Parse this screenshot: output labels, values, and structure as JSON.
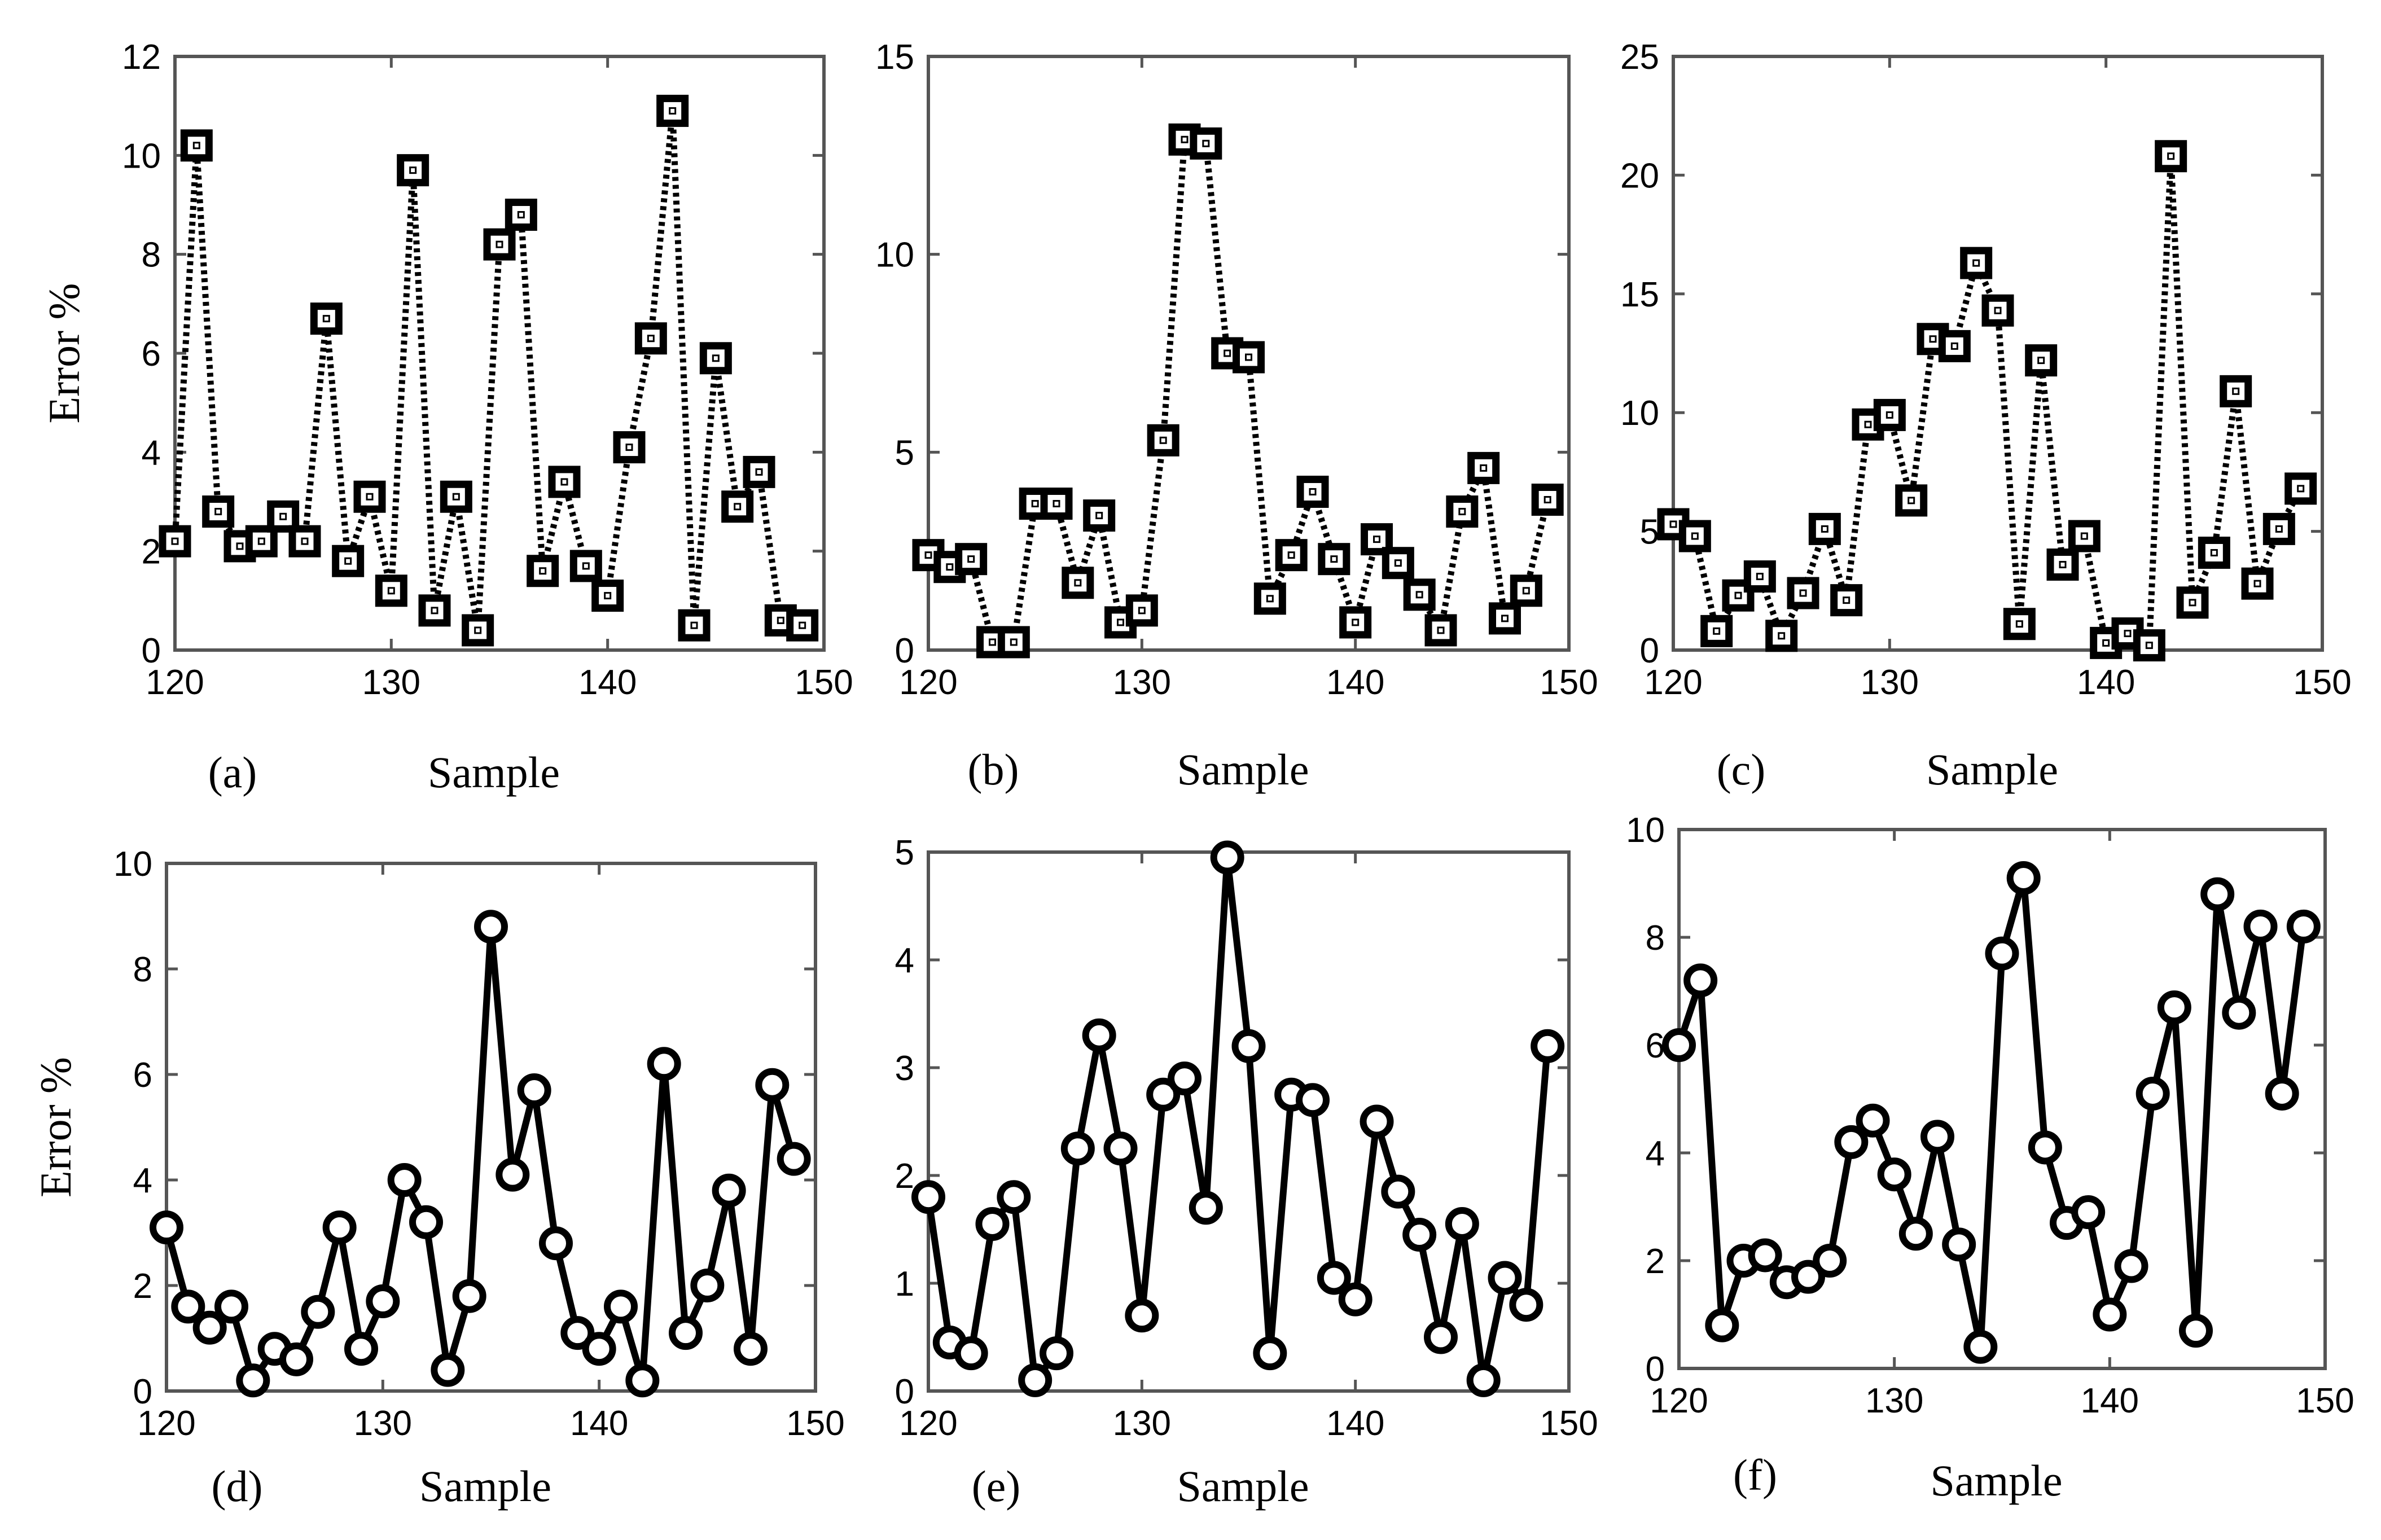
{
  "colors": {
    "line": "#000000",
    "frame": "#555555",
    "background": "#ffffff"
  },
  "chart_data": [
    {
      "id": "a",
      "panel_label": "(a)",
      "type": "line",
      "line_style": "dotted",
      "marker": "square",
      "xlabel": "Sample",
      "ylabel": "Error %",
      "xlim": [
        120,
        150
      ],
      "ylim": [
        0,
        12
      ],
      "xticks": [
        "120",
        "130",
        "140",
        "150"
      ],
      "yticks": [
        "0",
        "2",
        "4",
        "6",
        "8",
        "10",
        "12"
      ],
      "x": [
        120,
        121,
        122,
        123,
        124,
        125,
        126,
        127,
        128,
        129,
        130,
        131,
        132,
        133,
        134,
        135,
        136,
        137,
        138,
        139,
        140,
        141,
        142,
        143,
        144,
        145,
        146,
        147,
        148,
        149
      ],
      "values": [
        2.2,
        10.2,
        2.8,
        2.1,
        2.2,
        2.7,
        2.2,
        6.7,
        1.8,
        3.1,
        1.2,
        9.7,
        0.8,
        3.1,
        0.4,
        8.2,
        8.8,
        1.6,
        3.4,
        1.7,
        1.1,
        4.1,
        6.3,
        10.9,
        0.5,
        5.9,
        2.9,
        3.6,
        0.6,
        0.5
      ]
    },
    {
      "id": "b",
      "panel_label": "(b)",
      "type": "line",
      "line_style": "dotted",
      "marker": "square",
      "xlabel": "Sample",
      "ylabel": "",
      "xlim": [
        120,
        150
      ],
      "ylim": [
        0,
        15
      ],
      "xticks": [
        "120",
        "130",
        "140",
        "150"
      ],
      "yticks": [
        "0",
        "5",
        "10",
        "15"
      ],
      "x": [
        120,
        121,
        122,
        123,
        124,
        125,
        126,
        127,
        128,
        129,
        130,
        131,
        132,
        133,
        134,
        135,
        136,
        137,
        138,
        139,
        140,
        141,
        142,
        143,
        144,
        145,
        146,
        147,
        148,
        149
      ],
      "values": [
        2.4,
        2.1,
        2.3,
        0.2,
        0.2,
        3.7,
        3.7,
        1.7,
        3.4,
        0.7,
        1.0,
        5.3,
        12.9,
        12.8,
        7.5,
        7.4,
        1.3,
        2.4,
        4.0,
        2.3,
        0.7,
        2.8,
        2.2,
        1.4,
        0.5,
        3.5,
        4.6,
        0.8,
        1.5,
        3.8
      ]
    },
    {
      "id": "c",
      "panel_label": "(c)",
      "type": "line",
      "line_style": "dotted",
      "marker": "square",
      "xlabel": "Sample",
      "ylabel": "",
      "xlim": [
        120,
        150
      ],
      "ylim": [
        0,
        25
      ],
      "xticks": [
        "120",
        "130",
        "140",
        "150"
      ],
      "yticks": [
        "0",
        "5",
        "10",
        "15",
        "20",
        "25"
      ],
      "x": [
        120,
        121,
        122,
        123,
        124,
        125,
        126,
        127,
        128,
        129,
        130,
        131,
        132,
        133,
        134,
        135,
        136,
        137,
        138,
        139,
        140,
        141,
        142,
        143,
        144,
        145,
        146,
        147,
        148,
        149
      ],
      "values": [
        5.3,
        4.8,
        0.8,
        2.3,
        3.1,
        0.6,
        2.4,
        5.1,
        2.1,
        9.5,
        9.9,
        6.3,
        13.1,
        12.8,
        16.3,
        14.3,
        1.1,
        12.2,
        3.6,
        4.8,
        0.3,
        0.7,
        0.2,
        20.8,
        2.0,
        4.1,
        10.9,
        2.8,
        5.1,
        6.8
      ]
    },
    {
      "id": "d",
      "panel_label": "(d)",
      "type": "line",
      "line_style": "solid",
      "marker": "circle",
      "xlabel": "Sample",
      "ylabel": "Error %",
      "xlim": [
        120,
        150
      ],
      "ylim": [
        0,
        10
      ],
      "xticks": [
        "120",
        "130",
        "140",
        "150"
      ],
      "yticks": [
        "0",
        "2",
        "4",
        "6",
        "8",
        "10"
      ],
      "x": [
        120,
        121,
        122,
        123,
        124,
        125,
        126,
        127,
        128,
        129,
        130,
        131,
        132,
        133,
        134,
        135,
        136,
        137,
        138,
        139,
        140,
        141,
        142,
        143,
        144,
        145,
        146,
        147,
        148,
        149
      ],
      "values": [
        3.1,
        1.6,
        1.2,
        1.6,
        0.2,
        0.8,
        0.6,
        1.5,
        3.1,
        0.8,
        1.7,
        4.0,
        3.2,
        0.4,
        1.8,
        8.8,
        4.1,
        5.7,
        2.8,
        1.1,
        0.8,
        1.6,
        0.2,
        6.2,
        1.1,
        2.0,
        3.8,
        0.8,
        5.8,
        4.4
      ]
    },
    {
      "id": "e",
      "panel_label": "(e)",
      "type": "line",
      "line_style": "solid",
      "marker": "circle",
      "xlabel": "Sample",
      "ylabel": "",
      "xlim": [
        120,
        150
      ],
      "ylim": [
        0,
        5
      ],
      "xticks": [
        "120",
        "130",
        "140",
        "150"
      ],
      "yticks": [
        "0",
        "1",
        "2",
        "3",
        "4",
        "5"
      ],
      "x": [
        120,
        121,
        122,
        123,
        124,
        125,
        126,
        127,
        128,
        129,
        130,
        131,
        132,
        133,
        134,
        135,
        136,
        137,
        138,
        139,
        140,
        141,
        142,
        143,
        144,
        145,
        146,
        147,
        148,
        149
      ],
      "values": [
        1.8,
        0.45,
        0.35,
        1.55,
        1.8,
        0.1,
        0.35,
        2.25,
        3.3,
        2.25,
        0.7,
        2.75,
        2.9,
        1.7,
        4.95,
        3.2,
        0.35,
        2.75,
        2.7,
        1.05,
        0.85,
        2.5,
        1.85,
        1.45,
        0.5,
        1.55,
        0.1,
        1.05,
        0.8,
        3.2
      ]
    },
    {
      "id": "f",
      "panel_label": "(f)",
      "type": "line",
      "line_style": "solid",
      "marker": "circle",
      "xlabel": "Sample",
      "ylabel": "",
      "xlim": [
        120,
        150
      ],
      "ylim": [
        0,
        10
      ],
      "xticks": [
        "120",
        "130",
        "140",
        "150"
      ],
      "yticks": [
        "0",
        "2",
        "4",
        "6",
        "8",
        "10"
      ],
      "x": [
        120,
        121,
        122,
        123,
        124,
        125,
        126,
        127,
        128,
        129,
        130,
        131,
        132,
        133,
        134,
        135,
        136,
        137,
        138,
        139,
        140,
        141,
        142,
        143,
        144,
        145,
        146,
        147,
        148,
        149
      ],
      "values": [
        6.0,
        7.2,
        0.8,
        2.0,
        2.1,
        1.6,
        1.7,
        2.0,
        4.2,
        4.6,
        3.6,
        2.5,
        4.3,
        2.3,
        0.4,
        7.7,
        9.1,
        4.1,
        2.7,
        2.9,
        1.0,
        1.9,
        5.1,
        6.7,
        0.7,
        8.8,
        6.6,
        8.2,
        5.1,
        8.2
      ]
    }
  ]
}
